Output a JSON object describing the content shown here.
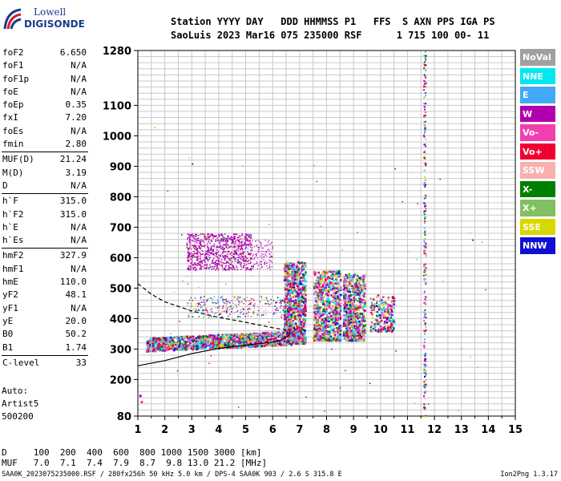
{
  "logo": {
    "top": "Lowell",
    "bottom": "DIGISONDE"
  },
  "header": {
    "labels": "Station YYYY DAY   DDD HHMMSS P1   FFS  S AXN PPS IGA PS",
    "values": "SaoLuis 2023 Mar16 075 235000 RSF      1 715 100 00- 11"
  },
  "params": {
    "group1": [
      {
        "label": "foF2",
        "value": "6.650"
      },
      {
        "label": "foF1",
        "value": "N/A"
      },
      {
        "label": "foF1p",
        "value": "N/A"
      },
      {
        "label": "foE",
        "value": "N/A"
      },
      {
        "label": "foEp",
        "value": "0.35"
      },
      {
        "label": "fxI",
        "value": "7.20"
      },
      {
        "label": "foEs",
        "value": "N/A"
      },
      {
        "label": "fmin",
        "value": "2.80"
      }
    ],
    "group2": [
      {
        "label": "MUF(D)",
        "value": "21.24"
      },
      {
        "label": "M(D)",
        "value": "3.19"
      },
      {
        "label": "D",
        "value": "N/A"
      }
    ],
    "group3": [
      {
        "label": "h`F",
        "value": "315.0"
      },
      {
        "label": "h`F2",
        "value": "315.0"
      },
      {
        "label": "h`E",
        "value": "N/A"
      },
      {
        "label": "h`Es",
        "value": "N/A"
      }
    ],
    "group4": [
      {
        "label": "hmF2",
        "value": "327.9"
      },
      {
        "label": "hmF1",
        "value": "N/A"
      },
      {
        "label": "hmE",
        "value": "110.0"
      },
      {
        "label": "yF2",
        "value": "48.1"
      },
      {
        "label": "yF1",
        "value": "N/A"
      },
      {
        "label": "yE",
        "value": "20.0"
      },
      {
        "label": "B0",
        "value": "50.2"
      },
      {
        "label": "B1",
        "value": "1.74"
      }
    ],
    "group5": [
      {
        "label": "C-level",
        "value": "33"
      }
    ]
  },
  "auto": {
    "line1": "Auto:",
    "line2": "Artist5",
    "line3": "500200"
  },
  "muf_table": {
    "d_row": "D     100  200  400  600  800 1000 1500 3000 [km]",
    "muf_row": "MUF   7.0  7.1  7.4  7.9  8.7  9.8 13.0 21.2 [MHz]"
  },
  "footer": {
    "left": "SAA0K_2023075235000.RSF / 280fx256h 50 kHz 5.0 km / DPS-4 SAA0K 903 / 2.6 S 315.8 E",
    "right": "Ion2Png 1.3.17"
  },
  "legend": [
    {
      "label": "NoVal",
      "color": "#a0a0a0"
    },
    {
      "label": "NNE",
      "color": "#00e8f0"
    },
    {
      "label": "E",
      "color": "#44a8f8"
    },
    {
      "label": "W",
      "color": "#b000b0"
    },
    {
      "label": "Vo-",
      "color": "#f040b0"
    },
    {
      "label": "Vo+",
      "color": "#f00030"
    },
    {
      "label": "SSW",
      "color": "#f8b0b0"
    },
    {
      "label": "X-",
      "color": "#008000"
    },
    {
      "label": "X+",
      "color": "#80c060"
    },
    {
      "label": "SSE",
      "color": "#d8d800"
    },
    {
      "label": "NNW",
      "color": "#1010d0"
    }
  ],
  "chart_data": {
    "type": "scatter",
    "xlabel": "",
    "ylabel": "",
    "xlim": [
      1,
      15
    ],
    "ylim": [
      80,
      1280
    ],
    "x_ticks": [
      1,
      2,
      3,
      4,
      5,
      6,
      7,
      8,
      9,
      10,
      11,
      12,
      13,
      14,
      15
    ],
    "y_ticks": [
      80,
      200,
      300,
      400,
      500,
      600,
      700,
      800,
      900,
      1000,
      1100,
      1280
    ],
    "clusters": [
      {
        "name": "F-trace",
        "x": [
          1.3,
          6.8
        ],
        "y": [
          300,
          360
        ]
      },
      {
        "name": "F-spread-1",
        "x": [
          6.4,
          7.2
        ],
        "y": [
          330,
          580
        ]
      },
      {
        "name": "F-spread-2",
        "x": [
          7.5,
          8.5
        ],
        "y": [
          330,
          560
        ]
      },
      {
        "name": "F-spread-3",
        "x": [
          8.6,
          9.4
        ],
        "y": [
          330,
          550
        ]
      },
      {
        "name": "F-spread-4",
        "x": [
          9.6,
          10.5
        ],
        "y": [
          360,
          480
        ]
      },
      {
        "name": "multi-hop",
        "x": [
          2.8,
          5.5
        ],
        "y": [
          560,
          680
        ]
      },
      {
        "name": "multi-hop-2",
        "x": [
          2.8,
          6.5
        ],
        "y": [
          410,
          470
        ]
      },
      {
        "name": "interference",
        "x": [
          11.5,
          11.7
        ],
        "y": [
          80,
          1280
        ]
      }
    ],
    "profile_solid": [
      [
        1.0,
        245
      ],
      [
        2.0,
        262
      ],
      [
        3.0,
        285
      ],
      [
        4.0,
        302
      ],
      [
        5.0,
        313
      ],
      [
        6.0,
        323
      ],
      [
        6.3,
        330
      ],
      [
        6.6,
        345
      ],
      [
        6.65,
        360
      ]
    ],
    "profile_dashed": [
      [
        1.0,
        515
      ],
      [
        1.5,
        480
      ],
      [
        2.0,
        455
      ],
      [
        3.0,
        425
      ],
      [
        4.0,
        404
      ],
      [
        5.0,
        388
      ],
      [
        6.0,
        370
      ],
      [
        6.65,
        360
      ]
    ]
  }
}
